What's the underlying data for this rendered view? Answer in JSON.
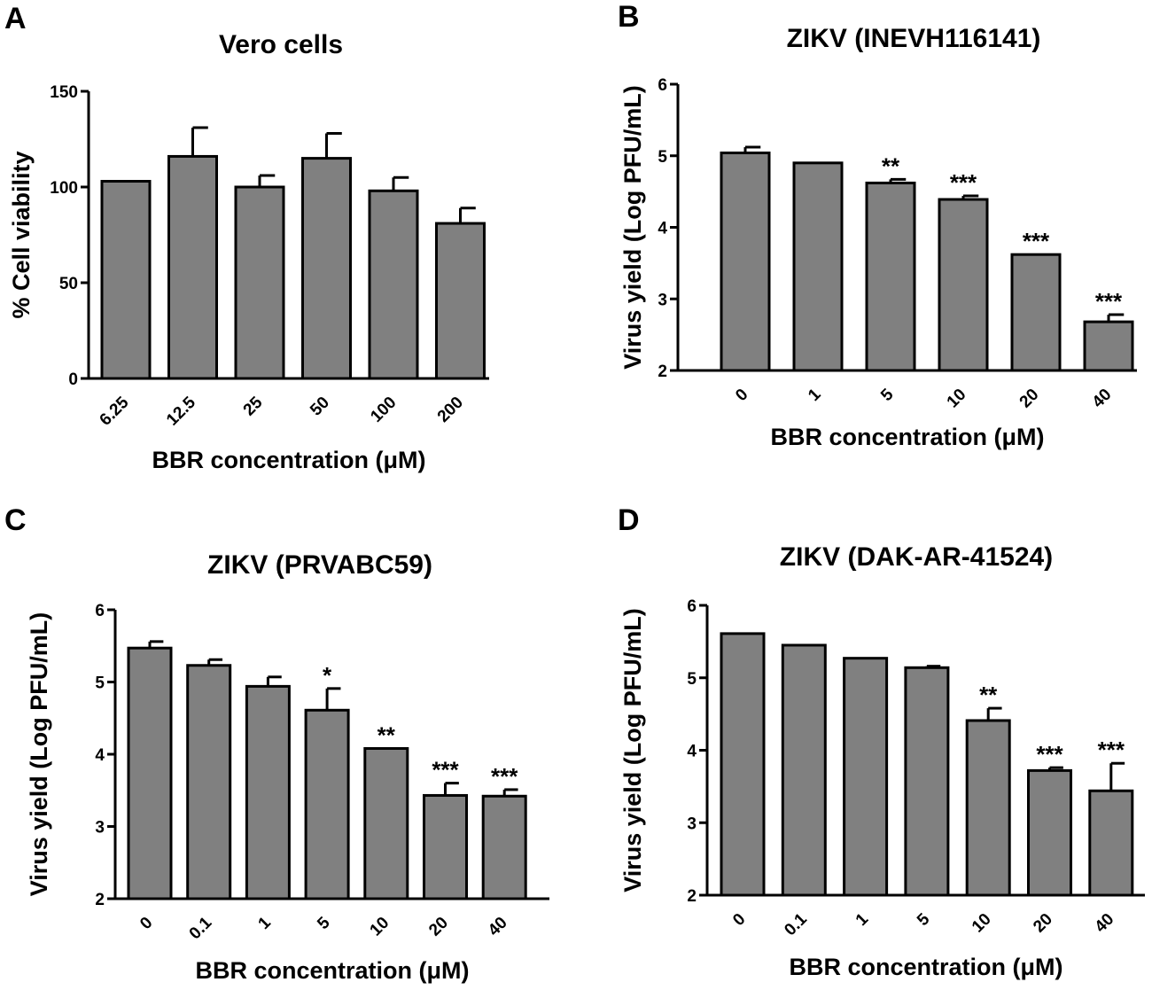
{
  "chart_data": [
    {
      "panel": "A",
      "type": "bar",
      "title": "Vero cells",
      "xlabel": "BBR concentration (μM)",
      "ylabel": "% Cell viability",
      "categories": [
        "6.25",
        "12.5",
        "25",
        "50",
        "100",
        "200"
      ],
      "values": [
        103,
        116,
        100,
        115,
        98,
        81
      ],
      "errors": [
        0,
        15,
        6,
        13,
        7,
        8
      ],
      "significance": [
        "",
        "",
        "",
        "",
        "",
        ""
      ],
      "ylim": [
        0,
        150
      ],
      "yticks": [
        "0",
        "50",
        "100",
        "150"
      ],
      "grid": false
    },
    {
      "panel": "B",
      "type": "bar",
      "title": "ZIKV (INEVH116141)",
      "xlabel": "BBR concentration (μM)",
      "ylabel": "Virus yield (Log PFU/mL)",
      "categories": [
        "0",
        "1",
        "5",
        "10",
        "20",
        "40"
      ],
      "values": [
        5.04,
        4.9,
        4.62,
        4.39,
        3.62,
        2.68
      ],
      "errors": [
        0.08,
        0.0,
        0.05,
        0.05,
        0.0,
        0.1
      ],
      "significance": [
        "",
        "",
        "**",
        "***",
        "***",
        "***"
      ],
      "ylim": [
        2,
        6
      ],
      "yticks": [
        "2",
        "3",
        "4",
        "5",
        "6"
      ],
      "grid": false
    },
    {
      "panel": "C",
      "type": "bar",
      "title": "ZIKV (PRVABC59)",
      "xlabel": "BBR concentration (μM)",
      "ylabel": "Virus yield (Log PFU/mL)",
      "categories": [
        "0",
        "0.1",
        "1",
        "5",
        "10",
        "20",
        "40"
      ],
      "values": [
        5.47,
        5.23,
        4.94,
        4.61,
        4.08,
        3.43,
        3.42
      ],
      "errors": [
        0.09,
        0.08,
        0.13,
        0.3,
        0.0,
        0.17,
        0.09
      ],
      "significance": [
        "",
        "",
        "",
        "*",
        "**",
        "***",
        "***"
      ],
      "ylim": [
        2,
        6
      ],
      "yticks": [
        "2",
        "3",
        "4",
        "5",
        "6"
      ],
      "grid": false
    },
    {
      "panel": "D",
      "type": "bar",
      "title": "ZIKV (DAK-AR-41524)",
      "xlabel": "BBR concentration (μM)",
      "ylabel": "Virus yield (Log PFU/mL)",
      "categories": [
        "0",
        "0.1",
        "1",
        "5",
        "10",
        "20",
        "40"
      ],
      "values": [
        5.61,
        5.45,
        5.27,
        5.14,
        4.41,
        3.72,
        3.44
      ],
      "errors": [
        0.0,
        0.0,
        0.0,
        0.02,
        0.17,
        0.04,
        0.38
      ],
      "significance": [
        "",
        "",
        "",
        "",
        "**",
        "***",
        "***"
      ],
      "ylim": [
        2,
        6
      ],
      "yticks": [
        "2",
        "3",
        "4",
        "5",
        "6"
      ],
      "grid": false
    }
  ],
  "colors": {
    "bar_fill": "#808080",
    "outline": "#000000"
  }
}
